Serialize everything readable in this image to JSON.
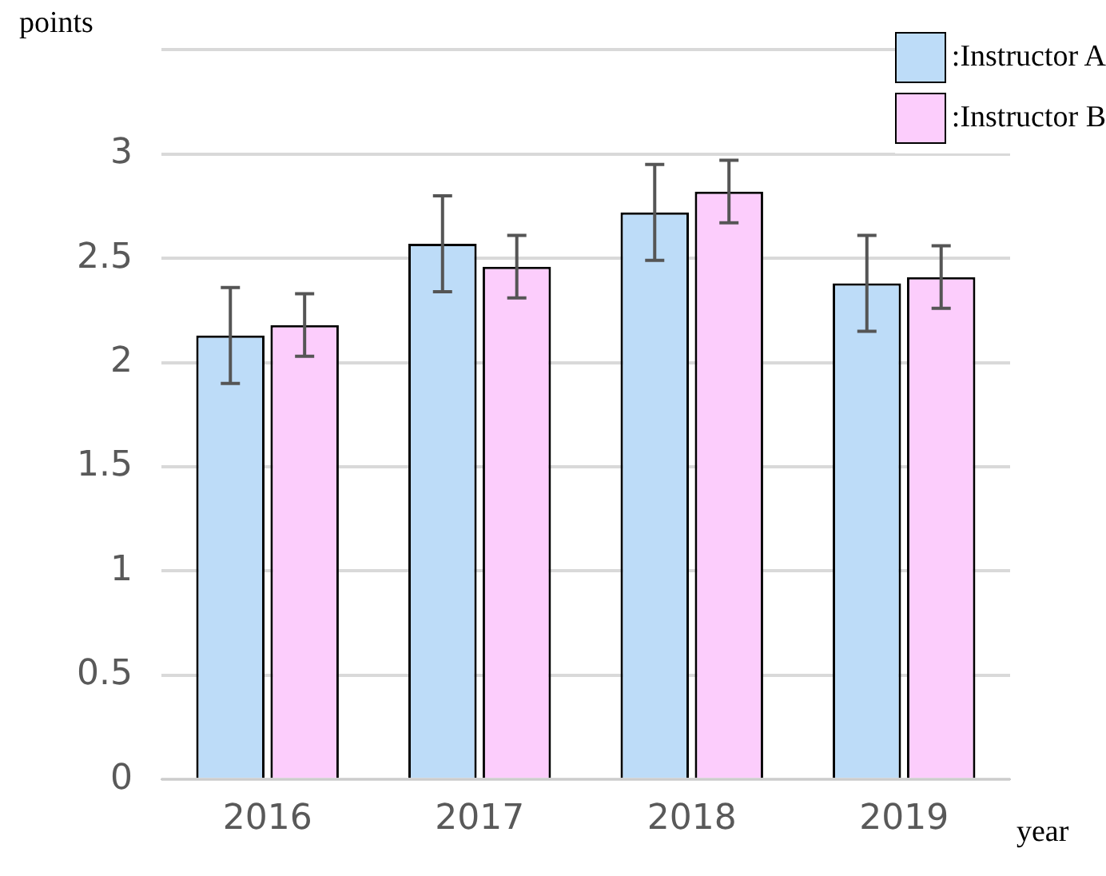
{
  "chart_data": {
    "type": "bar",
    "ylabel": "points",
    "xlabel": "year",
    "categories": [
      "2016",
      "2017",
      "2018",
      "2019"
    ],
    "series": [
      {
        "name": ":Instructor A",
        "color": "#bddcf8",
        "values": [
          2.13,
          2.57,
          2.72,
          2.38
        ],
        "errors": [
          0.23,
          0.23,
          0.23,
          0.23
        ]
      },
      {
        "name": ":Instructor B",
        "color": "#fccdfc",
        "values": [
          2.18,
          2.46,
          2.82,
          2.41
        ],
        "errors": [
          0.15,
          0.15,
          0.15,
          0.15
        ]
      }
    ],
    "ylim": [
      0,
      3.5
    ],
    "yticks": [
      0,
      0.5,
      1,
      1.5,
      2,
      2.5,
      3,
      {
        "value": 3.5,
        "label": null
      }
    ],
    "grid": "y",
    "legend": "top right"
  }
}
